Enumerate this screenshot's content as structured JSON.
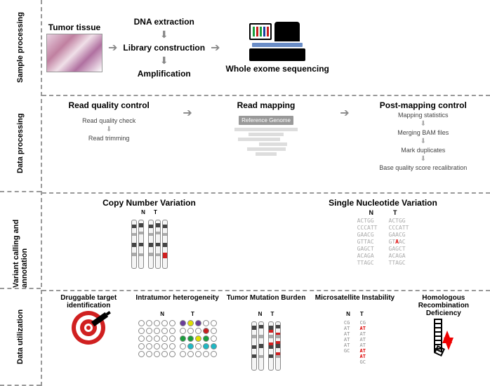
{
  "rows": {
    "r1": {
      "label": "Sample processing"
    },
    "r2": {
      "label": "Data processing"
    },
    "r3": {
      "label": "Variant calling and annotation"
    },
    "r4": {
      "label": "Data utilization"
    }
  },
  "sample": {
    "tumor": "Tumor tissue",
    "dna": "DNA extraction",
    "lib": "Library construction",
    "amp": "Amplification",
    "wes": "Whole exome sequencing",
    "chip_colors": [
      "#1a9e3c",
      "#c81e1e",
      "#1a9e3c",
      "#1a3e9e",
      "#c81e1e"
    ]
  },
  "dataproc": {
    "rqc": "Read quality control",
    "rqc_sub1": "Read quality check",
    "rqc_sub2": "Read trimming",
    "map": "Read mapping",
    "ref": "Reference Genome",
    "pmc": "Post-mapping control",
    "pmc_sub1": "Mapping statistics",
    "pmc_sub2": "Merging BAM files",
    "pmc_sub3": "Mark duplicates",
    "pmc_sub4": "Base quality score recalibration"
  },
  "variant": {
    "cnv": "Copy Number Variation",
    "snv": "Single Nucleotide Variation",
    "n_label": "N",
    "t_label": "T",
    "snv_n": [
      "ACTGG",
      "CCCATT",
      "GAACG",
      "GTTAC",
      "GAGCT",
      "ACAGA",
      "TTAGC"
    ],
    "snv_t": [
      "ACTGG",
      "CCCATT",
      "GAACG",
      "GTAAC",
      "GAGCT",
      "ACAGA",
      "TTAGC"
    ],
    "mut_row": 3,
    "mut_col": 2
  },
  "util": {
    "drug": "Druggable target identification",
    "ith": "Intratumor heterogeneity",
    "tmb": "Tumor Mutation Burden",
    "msi": "Microsatellite Instability",
    "hrd": "Homologous Recombination Deficiency",
    "n_label": "N",
    "t_label": "T",
    "ith_colors": {
      "n": [
        [
          "",
          "",
          "",
          "",
          ""
        ],
        [
          "",
          "",
          "",
          "",
          ""
        ],
        [
          "",
          "",
          "",
          "",
          ""
        ],
        [
          "",
          "",
          "",
          "",
          ""
        ],
        [
          "",
          "",
          "",
          "",
          ""
        ]
      ],
      "t": [
        [
          "#6a3d9a",
          "#e0e000",
          "#6a3d9a",
          "",
          ""
        ],
        [
          "",
          "",
          "",
          "#c81e1e",
          ""
        ],
        [
          "#1a9e3c",
          "#1a9e3c",
          "#e0e000",
          "#1a9e3c",
          ""
        ],
        [
          "",
          "#1fb8c4",
          "",
          "#1fb8c4",
          "#1fb8c4"
        ],
        [
          "",
          "",
          "",
          "",
          ""
        ]
      ]
    },
    "msi_n": [
      "CG",
      "AT",
      "AT",
      "AT",
      "AT",
      "GC"
    ],
    "msi_t": [
      "CG",
      "AT",
      "AT",
      "AT",
      "AT",
      "AT",
      "AT",
      "GC"
    ],
    "msi_mut_rows": [
      1,
      5,
      6
    ]
  },
  "colors": {
    "band_dark": "#444",
    "band_mid": "#aaa",
    "band_red": "#d02020",
    "target_red": "#d02020"
  }
}
